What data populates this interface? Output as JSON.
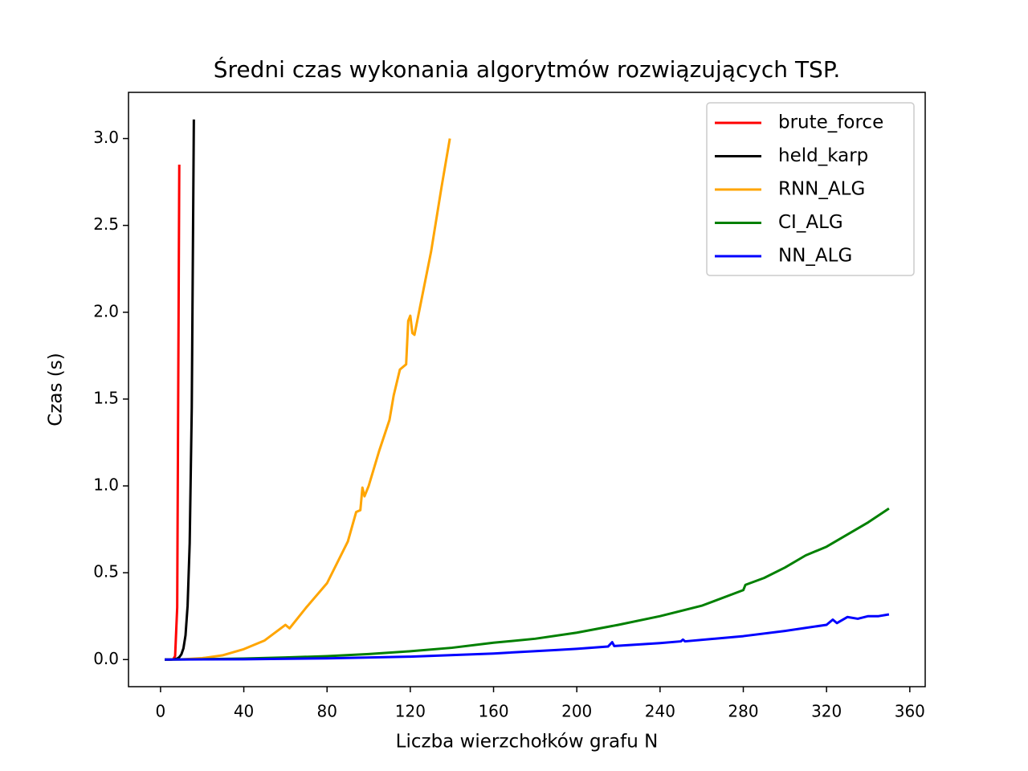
{
  "chart_data": {
    "type": "line",
    "title": "Średni czas wykonania algorytmów rozwiązujących TSP.",
    "xlabel": "Liczba wierzchołków grafu N",
    "ylabel": "Czas (s)",
    "xlim": [
      -15.4,
      367.4
    ],
    "ylim": [
      -0.156,
      3.266
    ],
    "xticks": [
      0,
      40,
      80,
      120,
      160,
      200,
      240,
      280,
      320,
      360
    ],
    "yticks": [
      {
        "value": 0,
        "label": "0.0"
      },
      0.5,
      {
        "value": 1,
        "label": "1.0"
      },
      1.5,
      {
        "value": 2,
        "label": "2.0"
      },
      2.5,
      {
        "value": 3,
        "label": "3.0"
      }
    ],
    "grid": false,
    "legend": "upper right",
    "series": [
      {
        "name": "brute_force",
        "color": "#ff0000",
        "x": [
          2,
          3,
          4,
          5,
          6,
          7,
          8,
          9
        ],
        "values": [
          0,
          0,
          0,
          0,
          0.001,
          0.02,
          0.3,
          2.85
        ]
      },
      {
        "name": "held_karp",
        "color": "#000000",
        "x": [
          2,
          4,
          6,
          7,
          8,
          9,
          10,
          11,
          12,
          13,
          14,
          15,
          16
        ],
        "values": [
          0,
          0,
          0.001,
          0.003,
          0.006,
          0.014,
          0.03,
          0.065,
          0.14,
          0.31,
          0.67,
          1.45,
          3.11
        ]
      },
      {
        "name": "RNN_ALG",
        "color": "#ffa500",
        "x": [
          2,
          10,
          20,
          30,
          40,
          50,
          60,
          62,
          70,
          80,
          90,
          94,
          96,
          97,
          98,
          100,
          105,
          110,
          112,
          115,
          118,
          119,
          120,
          121,
          122,
          125,
          130,
          135,
          139
        ],
        "values": [
          0,
          0.001,
          0.008,
          0.025,
          0.06,
          0.11,
          0.2,
          0.18,
          0.3,
          0.44,
          0.68,
          0.85,
          0.86,
          0.99,
          0.94,
          1.0,
          1.2,
          1.38,
          1.52,
          1.67,
          1.7,
          1.95,
          1.98,
          1.88,
          1.87,
          2.05,
          2.35,
          2.72,
          3.0
        ]
      },
      {
        "name": "CI_ALG",
        "color": "#008000",
        "x": [
          2,
          20,
          40,
          60,
          80,
          100,
          120,
          140,
          160,
          180,
          200,
          220,
          240,
          260,
          280,
          281,
          290,
          300,
          310,
          320,
          330,
          340,
          350
        ],
        "values": [
          0,
          0.002,
          0.006,
          0.012,
          0.02,
          0.032,
          0.048,
          0.068,
          0.097,
          0.12,
          0.155,
          0.2,
          0.25,
          0.31,
          0.4,
          0.43,
          0.47,
          0.53,
          0.6,
          0.65,
          0.72,
          0.79,
          0.87
        ]
      },
      {
        "name": "NN_ALG",
        "color": "#0000ff",
        "x": [
          2,
          40,
          80,
          120,
          160,
          190,
          200,
          215,
          217,
          218,
          240,
          250,
          251,
          252,
          280,
          300,
          320,
          323,
          325,
          330,
          335,
          340,
          345,
          350
        ],
        "values": [
          0,
          0.002,
          0.007,
          0.017,
          0.035,
          0.055,
          0.062,
          0.075,
          0.1,
          0.078,
          0.095,
          0.105,
          0.115,
          0.105,
          0.135,
          0.165,
          0.2,
          0.23,
          0.21,
          0.245,
          0.235,
          0.25,
          0.25,
          0.26
        ]
      }
    ]
  }
}
